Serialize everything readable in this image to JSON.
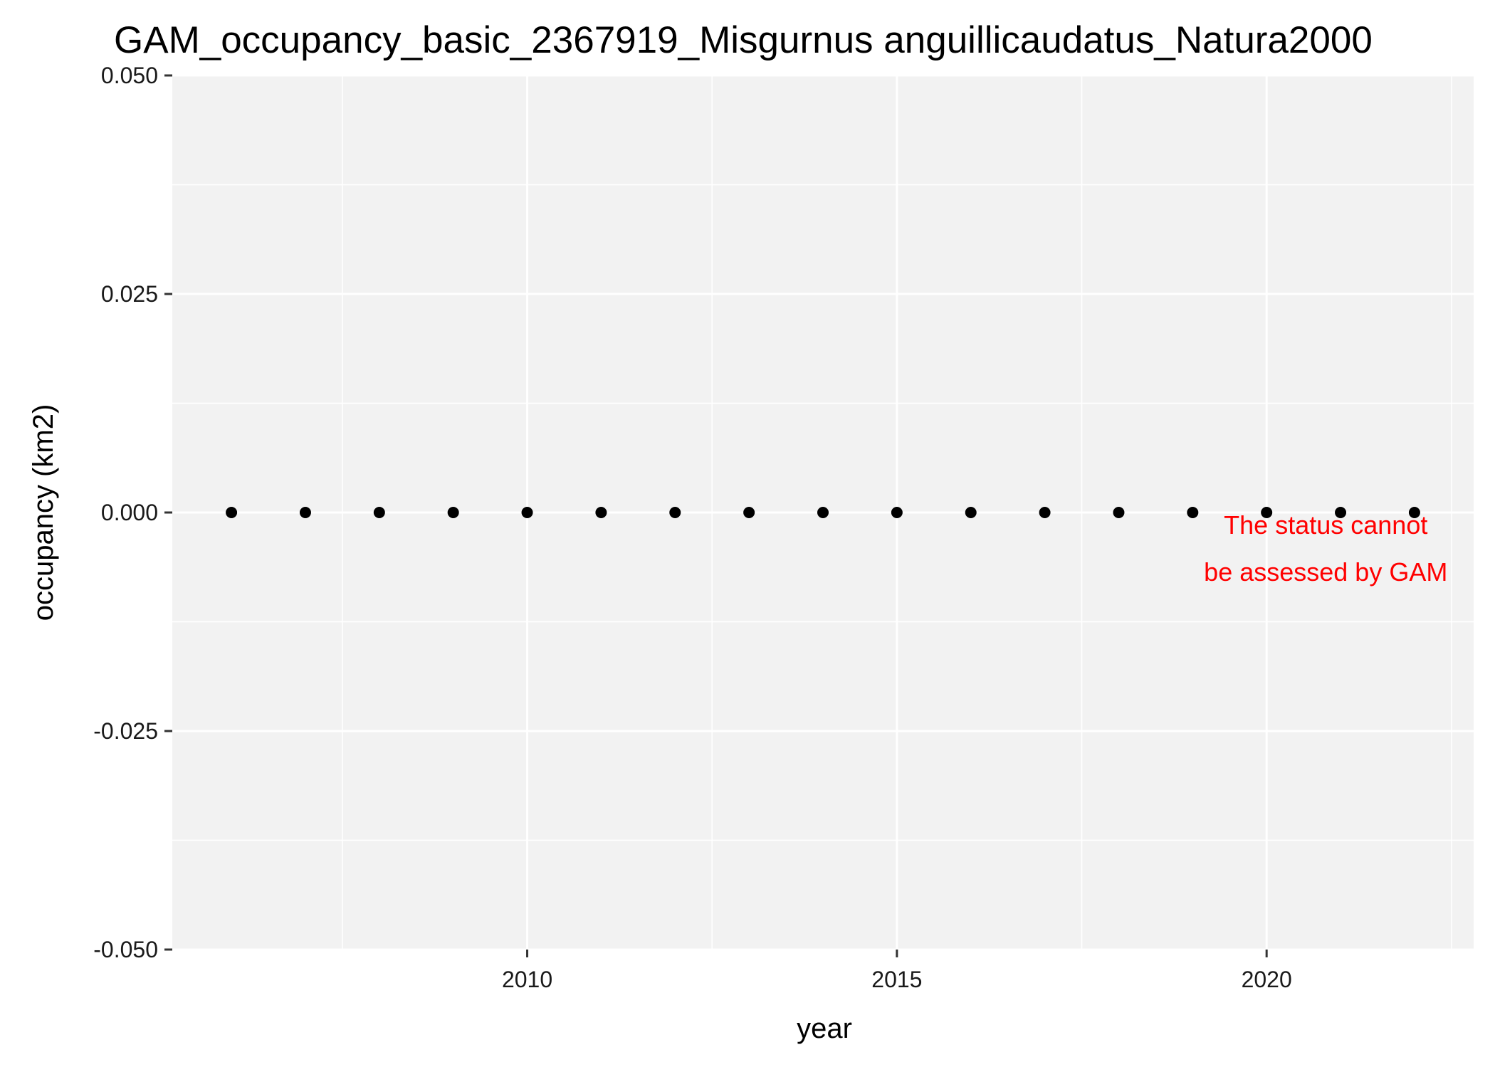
{
  "chart_data": {
    "type": "scatter",
    "title": "GAM_occupancy_basic_2367919_Misgurnus anguillicaudatus_Natura2000",
    "xlabel": "year",
    "ylabel": "occupancy (km2)",
    "xlim": [
      2005.2,
      2022.8
    ],
    "ylim": [
      -0.05,
      0.05
    ],
    "x_ticks": [
      2010,
      2015,
      2020
    ],
    "x_tick_labels": [
      "2010",
      "2015",
      "2020"
    ],
    "y_ticks": [
      -0.05,
      -0.025,
      0.0,
      0.025,
      0.05
    ],
    "y_tick_labels": [
      "-0.050",
      "-0.025",
      "0.000",
      "0.025",
      "0.050"
    ],
    "grid": true,
    "series": [
      {
        "x": [
          2006,
          2007,
          2008,
          2009,
          2010,
          2011,
          2012,
          2013,
          2014,
          2015,
          2016,
          2017,
          2018,
          2019,
          2020,
          2021,
          2022
        ],
        "y": [
          0,
          0,
          0,
          0,
          0,
          0,
          0,
          0,
          0,
          0,
          0,
          0,
          0,
          0,
          0,
          0,
          0
        ],
        "color": "#000000"
      }
    ],
    "annotation": {
      "lines": [
        "The status cannot",
        "be assessed by GAM"
      ],
      "color": "#ff0000"
    },
    "panel_color": "#f2f2f2",
    "grid_color": "#ffffff"
  }
}
